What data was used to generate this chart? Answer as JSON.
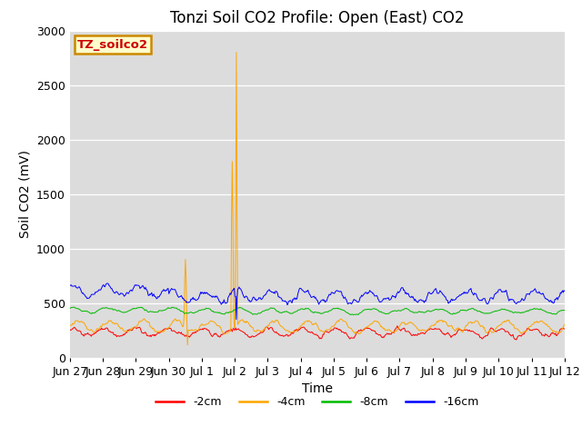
{
  "title": "Tonzi Soil CO2 Profile: Open (East) CO2",
  "ylabel": "Soil CO2 (mV)",
  "xlabel": "Time",
  "ylim": [
    0,
    3000
  ],
  "yticks": [
    0,
    500,
    1000,
    1500,
    2000,
    2500,
    3000
  ],
  "xtick_labels": [
    "Jun 27",
    "Jun 28",
    "Jun 29",
    "Jun 30",
    "Jul 1",
    "Jul 2",
    "Jul 3",
    "Jul 4",
    "Jul 5",
    "Jul 6",
    "Jul 7",
    "Jul 8",
    "Jul 9",
    "Jul 10",
    "Jul 11",
    "Jul 12"
  ],
  "plot_bg": "#dcdcdc",
  "fig_bg": "#ffffff",
  "series_colors": {
    "-2cm": "#ff0000",
    "-4cm": "#ffa500",
    "-8cm": "#00bb00",
    "-16cm": "#0000ff"
  },
  "legend_label": "TZ_soilco2",
  "legend_bg": "#ffffcc",
  "legend_border": "#cc8800",
  "legend_text_color": "#cc0000",
  "title_fontsize": 12,
  "axis_fontsize": 10,
  "tick_fontsize": 9
}
